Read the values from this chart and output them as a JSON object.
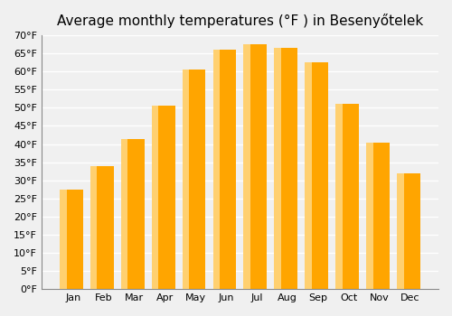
{
  "title": "Average monthly temperatures (°F ) in Besenyőtelek",
  "months": [
    "Jan",
    "Feb",
    "Mar",
    "Apr",
    "May",
    "Jun",
    "Jul",
    "Aug",
    "Sep",
    "Oct",
    "Nov",
    "Dec"
  ],
  "values": [
    27.5,
    34.0,
    41.5,
    50.5,
    60.5,
    66.0,
    67.5,
    66.5,
    62.5,
    51.0,
    40.5,
    32.0
  ],
  "bar_color_main": "#FFA500",
  "bar_color_gradient_light": "#FFD070",
  "ylim": [
    0,
    70
  ],
  "yticks": [
    0,
    5,
    10,
    15,
    20,
    25,
    30,
    35,
    40,
    45,
    50,
    55,
    60,
    65,
    70
  ],
  "ytick_labels": [
    "0°F",
    "5°F",
    "10°F",
    "15°F",
    "20°F",
    "25°F",
    "30°F",
    "35°F",
    "40°F",
    "45°F",
    "50°F",
    "55°F",
    "60°F",
    "65°F",
    "70°F"
  ],
  "background_color": "#f0f0f0",
  "grid_color": "#ffffff",
  "title_fontsize": 11
}
